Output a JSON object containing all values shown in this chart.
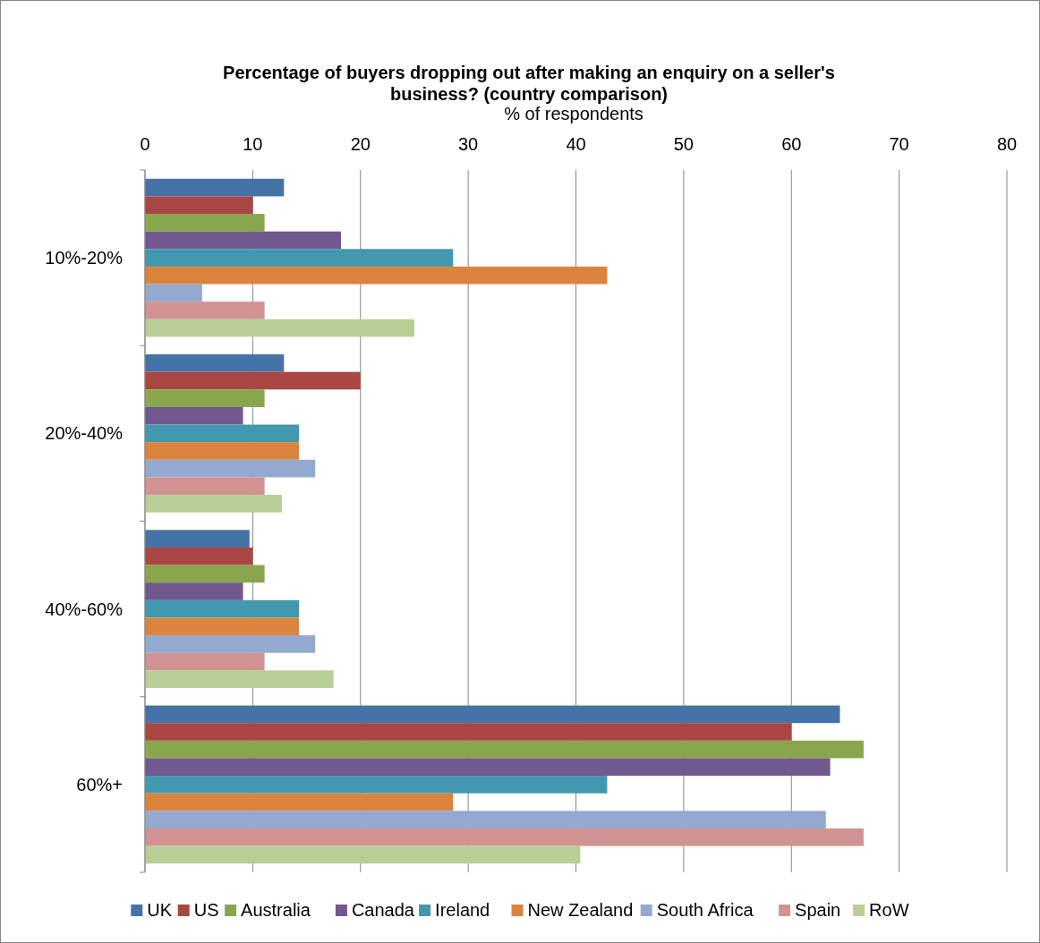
{
  "chart_data": {
    "type": "bar",
    "orientation": "horizontal",
    "title": "Percentage of buyers dropping out after making an enquiry on a seller's business? (country comparison)",
    "xlabel": "% of respondents",
    "categories": [
      "10%-20%",
      "20%-40%",
      "40%-60%",
      "60%+"
    ],
    "series": [
      {
        "name": "UK",
        "color": "#4572a7",
        "values": [
          12.9,
          12.9,
          9.7,
          64.5
        ]
      },
      {
        "name": "US",
        "color": "#aa4643",
        "values": [
          10,
          20,
          10,
          60
        ]
      },
      {
        "name": "Australia",
        "color": "#89a54e",
        "values": [
          11.1,
          11.1,
          11.1,
          66.7
        ]
      },
      {
        "name": "Canada",
        "color": "#71588f",
        "values": [
          18.2,
          9.1,
          9.1,
          63.6
        ]
      },
      {
        "name": "Ireland",
        "color": "#4198af",
        "values": [
          28.6,
          14.3,
          14.3,
          42.9
        ]
      },
      {
        "name": "New Zealand",
        "color": "#db843d",
        "values": [
          42.9,
          14.3,
          14.3,
          28.6
        ]
      },
      {
        "name": "South Africa",
        "color": "#93a9cf",
        "values": [
          5.3,
          15.8,
          15.8,
          63.2
        ]
      },
      {
        "name": "Spain",
        "color": "#d19392",
        "values": [
          11.1,
          11.1,
          11.1,
          66.7
        ]
      },
      {
        "name": "RoW",
        "color": "#b9cd96",
        "values": [
          25,
          12.7,
          17.5,
          40.4
        ]
      }
    ],
    "xlim": [
      0,
      80
    ],
    "xticks": [
      0,
      10,
      20,
      30,
      40,
      50,
      60,
      70,
      80
    ],
    "grid": "x",
    "legend": "bottom"
  }
}
